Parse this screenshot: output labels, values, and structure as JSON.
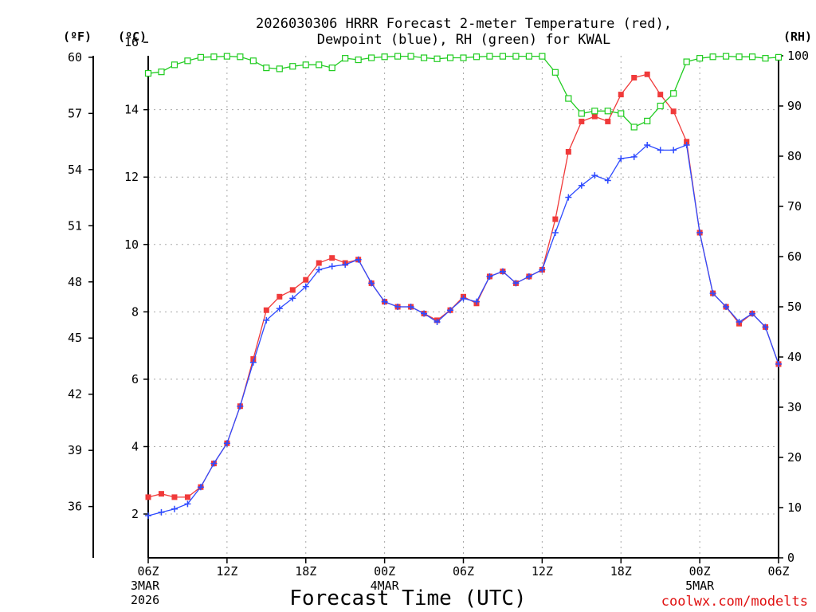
{
  "chart_data": {
    "type": "line",
    "title_line1": "2026030306 HRRR Forecast 2-meter Temperature (red),",
    "title_line2": "Dewpoint (blue), RH (green) for KWAL",
    "xlabel": "Forecast Time (UTC)",
    "unit_f": "(ºF)",
    "unit_c": "(ºC)",
    "unit_rh": "(RH)",
    "credit": "coolwx.com/modelts",
    "x_hours": [
      0,
      1,
      2,
      3,
      4,
      5,
      6,
      7,
      8,
      9,
      10,
      11,
      12,
      13,
      14,
      15,
      16,
      17,
      18,
      19,
      20,
      21,
      22,
      23,
      24,
      25,
      26,
      27,
      28,
      29,
      30,
      31,
      32,
      33,
      34,
      35,
      36,
      37,
      38,
      39,
      40,
      41,
      42,
      43,
      44,
      45,
      46,
      47,
      48
    ],
    "xlim": [
      0,
      48
    ],
    "ylim_c": [
      0.7,
      15.6
    ],
    "ylim_rh": [
      0,
      100
    ],
    "c_ticks": [
      "2",
      "4",
      "6",
      "8",
      "10",
      "12",
      "14",
      "16"
    ],
    "c_tick_values": [
      2,
      4,
      6,
      8,
      10,
      12,
      14,
      16
    ],
    "f_ticks": [
      "36",
      "39",
      "42",
      "45",
      "48",
      "51",
      "54",
      "57",
      "60"
    ],
    "f_tick_values": [
      36,
      39,
      42,
      45,
      48,
      51,
      54,
      57,
      60
    ],
    "rh_ticks": [
      "0",
      "10",
      "20",
      "30",
      "40",
      "50",
      "60",
      "70",
      "80",
      "90",
      "100"
    ],
    "rh_tick_values": [
      0,
      10,
      20,
      30,
      40,
      50,
      60,
      70,
      80,
      90,
      100
    ],
    "x_ticks": [
      {
        "hour": 0,
        "line1": "06Z",
        "line2": "3MAR",
        "line3": "2026"
      },
      {
        "hour": 6,
        "line1": "12Z",
        "line2": "",
        "line3": ""
      },
      {
        "hour": 12,
        "line1": "18Z",
        "line2": "",
        "line3": ""
      },
      {
        "hour": 18,
        "line1": "00Z",
        "line2": "4MAR",
        "line3": ""
      },
      {
        "hour": 24,
        "line1": "06Z",
        "line2": "",
        "line3": ""
      },
      {
        "hour": 30,
        "line1": "12Z",
        "line2": "",
        "line3": ""
      },
      {
        "hour": 36,
        "line1": "18Z",
        "line2": "",
        "line3": ""
      },
      {
        "hour": 42,
        "line1": "00Z",
        "line2": "5MAR",
        "line3": ""
      },
      {
        "hour": 48,
        "line1": "06Z",
        "line2": "",
        "line3": ""
      }
    ],
    "series": [
      {
        "name": "Temperature",
        "units": "C",
        "color": "#f03a3a",
        "marker": "filled-square",
        "values": [
          2.5,
          2.6,
          2.5,
          2.5,
          2.8,
          3.5,
          4.1,
          5.2,
          6.6,
          8.05,
          8.45,
          8.65,
          8.95,
          9.45,
          9.6,
          9.45,
          9.55,
          8.85,
          8.3,
          8.15,
          8.15,
          7.95,
          7.75,
          8.05,
          8.45,
          8.25,
          9.05,
          9.2,
          8.85,
          9.05,
          9.25,
          10.75,
          12.75,
          13.65,
          13.8,
          13.65,
          14.45,
          14.95,
          15.05,
          14.45,
          13.95,
          13.05,
          10.35,
          8.55,
          8.15,
          7.65,
          7.95,
          7.55,
          6.45
        ]
      },
      {
        "name": "Dewpoint",
        "units": "C",
        "color": "#2f4bff",
        "marker": "plus",
        "values": [
          1.95,
          2.05,
          2.15,
          2.3,
          2.8,
          3.5,
          4.1,
          5.2,
          6.5,
          7.75,
          8.1,
          8.4,
          8.75,
          9.25,
          9.35,
          9.4,
          9.55,
          8.85,
          8.3,
          8.15,
          8.15,
          7.95,
          7.7,
          8.05,
          8.4,
          8.3,
          9.05,
          9.2,
          8.85,
          9.05,
          9.25,
          10.35,
          11.4,
          11.75,
          12.05,
          11.9,
          12.55,
          12.6,
          12.95,
          12.8,
          12.8,
          12.95,
          10.35,
          8.55,
          8.15,
          7.7,
          7.95,
          7.55,
          6.45
        ]
      },
      {
        "name": "RH",
        "units": "%",
        "color": "#20cc20",
        "marker": "open-square",
        "values": [
          96.5,
          96.8,
          98.2,
          99.0,
          99.7,
          99.8,
          99.9,
          99.8,
          99.0,
          97.6,
          97.4,
          97.9,
          98.2,
          98.2,
          97.6,
          99.5,
          99.2,
          99.6,
          99.8,
          99.9,
          99.9,
          99.6,
          99.4,
          99.6,
          99.6,
          99.8,
          99.9,
          99.9,
          99.9,
          99.9,
          99.9,
          96.7,
          91.5,
          88.5,
          89.0,
          89.0,
          88.5,
          85.8,
          87.0,
          90.0,
          92.5,
          98.8,
          99.5,
          99.8,
          99.9,
          99.8,
          99.8,
          99.5,
          99.7
        ]
      }
    ]
  }
}
